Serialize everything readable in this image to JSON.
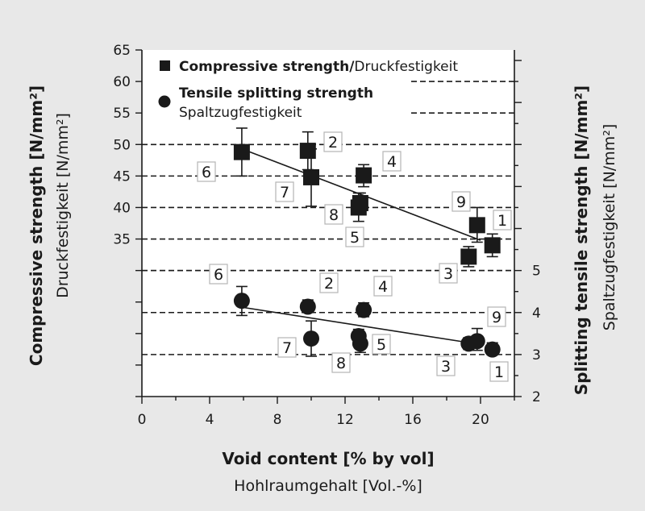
{
  "chart_data": {
    "type": "scatter",
    "xlabel": "Void content [% by vol]",
    "xlabel_sub": "Hohlraumgehalt [Vol.-%]",
    "ylabel_left": "Compressive strength [N/mm²]",
    "ylabel_left_sub": "Druckfestigkeit [N/mm²]",
    "ylabel_right": "Splitting tensile strength [N/mm²]",
    "ylabel_right_sub": "Spaltzugfestigkeit [N/mm²]",
    "xlim": [
      0,
      22
    ],
    "x_ticks": [
      "0",
      "4",
      "8",
      "12",
      "16",
      "20"
    ],
    "y_left_lim": [
      10,
      65
    ],
    "y_left_ticks": [
      "35",
      "40",
      "45",
      "50",
      "55",
      "60",
      "65"
    ],
    "y_right_lim": [
      2,
      10.25
    ],
    "y_right_ticks": [
      "2",
      "3",
      "4",
      "5"
    ],
    "grid": "dashed horizontal",
    "legend_position": "top-left",
    "legend": [
      {
        "marker": "square",
        "label_bold": "Compressive strength/",
        "label_regular": "Druckfestigkeit"
      },
      {
        "marker": "circle",
        "label_bold": "Tensile splitting strength",
        "label_regular": "Spaltzugfestigkeit"
      }
    ],
    "series": [
      {
        "name": "Compressive strength/Druckfestigkeit",
        "axis": "left",
        "marker": "square",
        "points": [
          {
            "id": "6",
            "x": 5.9,
            "y": 48.8,
            "err": [
              45.0,
              52.6
            ]
          },
          {
            "id": "2",
            "x": 9.8,
            "y": 49.0,
            "err": [
              46.0,
              52.0
            ]
          },
          {
            "id": "7",
            "x": 10.0,
            "y": 44.8,
            "err": [
              40.2,
              49.3
            ]
          },
          {
            "id": "4",
            "x": 13.1,
            "y": 45.1,
            "err": [
              43.3,
              46.8
            ]
          },
          {
            "id": "8",
            "x": 12.8,
            "y": 40.0,
            "err": [
              37.8,
              42.3
            ]
          },
          {
            "id": "5",
            "x": 12.9,
            "y": 40.7,
            "err": [
              39.0,
              42.3
            ]
          },
          {
            "id": "9",
            "x": 19.8,
            "y": 37.2,
            "err": [
              34.5,
              40.0
            ]
          },
          {
            "id": "1",
            "x": 20.7,
            "y": 34.0,
            "err": [
              32.2,
              35.8
            ]
          },
          {
            "id": "3",
            "x": 19.3,
            "y": 32.2,
            "err": [
              30.6,
              33.8
            ]
          }
        ],
        "trend": {
          "x": [
            6.0,
            20.0
          ],
          "y": [
            49.2,
            34.8
          ]
        }
      },
      {
        "name": "Tensile splitting strength Spaltzugfestigkeit",
        "axis": "right",
        "marker": "circle",
        "points": [
          {
            "id": "6",
            "x": 5.9,
            "y": 4.28,
            "err": [
              3.93,
              4.62
            ]
          },
          {
            "id": "2",
            "x": 9.8,
            "y": 4.14,
            "err": [
              4.0,
              4.3
            ]
          },
          {
            "id": "7",
            "x": 10.0,
            "y": 3.38,
            "err": [
              2.96,
              3.8
            ]
          },
          {
            "id": "4",
            "x": 13.1,
            "y": 4.06,
            "err": [
              3.9,
              4.23
            ]
          },
          {
            "id": "8",
            "x": 12.9,
            "y": 3.26,
            "err": [
              3.05,
              3.42
            ]
          },
          {
            "id": "5",
            "x": 12.8,
            "y": 3.44,
            "err": [
              3.3,
              3.6
            ]
          },
          {
            "id": "9",
            "x": 19.8,
            "y": 3.32,
            "err": [
              3.1,
              3.62
            ]
          },
          {
            "id": "1",
            "x": 20.7,
            "y": 3.12,
            "err": [
              3.0,
              3.28
            ]
          },
          {
            "id": "3",
            "x": 19.3,
            "y": 3.26,
            "err": [
              3.12,
              3.4
            ]
          }
        ],
        "trend": {
          "x": [
            6.0,
            20.0
          ],
          "y": [
            4.12,
            3.24
          ]
        }
      }
    ],
    "annotations_compressive": [
      "6",
      "2",
      "4",
      "7",
      "8",
      "9",
      "1",
      "5",
      "3"
    ],
    "annotations_tensile": [
      "6",
      "2",
      "4",
      "9",
      "7",
      "5",
      "8",
      "3",
      "1"
    ]
  }
}
